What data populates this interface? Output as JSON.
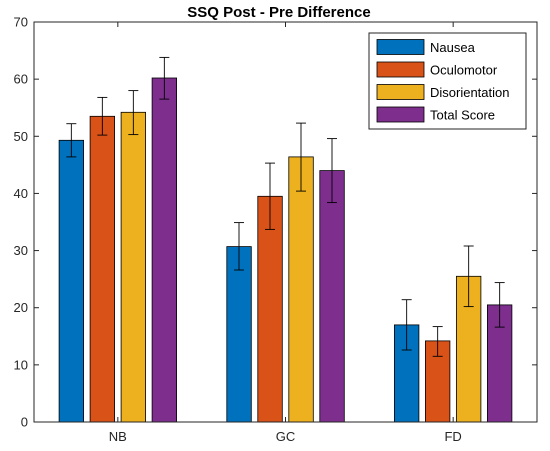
{
  "chart_data": {
    "type": "bar",
    "title": "SSQ Post - Pre Difference",
    "xlabel": "",
    "ylabel": "",
    "categories": [
      "NB",
      "GC",
      "FD"
    ],
    "ylim": [
      0,
      70
    ],
    "yticks": [
      0,
      10,
      20,
      30,
      40,
      50,
      60,
      70
    ],
    "grid": false,
    "legend_position": "top-right",
    "series": [
      {
        "name": "Nausea",
        "color": "#0072BD",
        "values": [
          49.3,
          30.7,
          17.0
        ],
        "err_low": [
          46.4,
          26.6,
          12.6
        ],
        "err_high": [
          52.2,
          34.9,
          21.4
        ]
      },
      {
        "name": "Oculomotor",
        "color": "#D95319",
        "values": [
          53.5,
          39.5,
          14.2
        ],
        "err_low": [
          50.2,
          33.7,
          11.5
        ],
        "err_high": [
          56.8,
          45.3,
          16.7
        ]
      },
      {
        "name": "Disorientation",
        "color": "#EDB120",
        "values": [
          54.2,
          46.4,
          25.5
        ],
        "err_low": [
          50.3,
          40.4,
          20.2
        ],
        "err_high": [
          58.0,
          52.3,
          30.8
        ]
      },
      {
        "name": "Total Score",
        "color": "#7E2F8E",
        "values": [
          60.2,
          44.0,
          20.5
        ],
        "err_low": [
          56.5,
          38.4,
          16.6
        ],
        "err_high": [
          63.8,
          49.6,
          24.4
        ]
      }
    ]
  }
}
